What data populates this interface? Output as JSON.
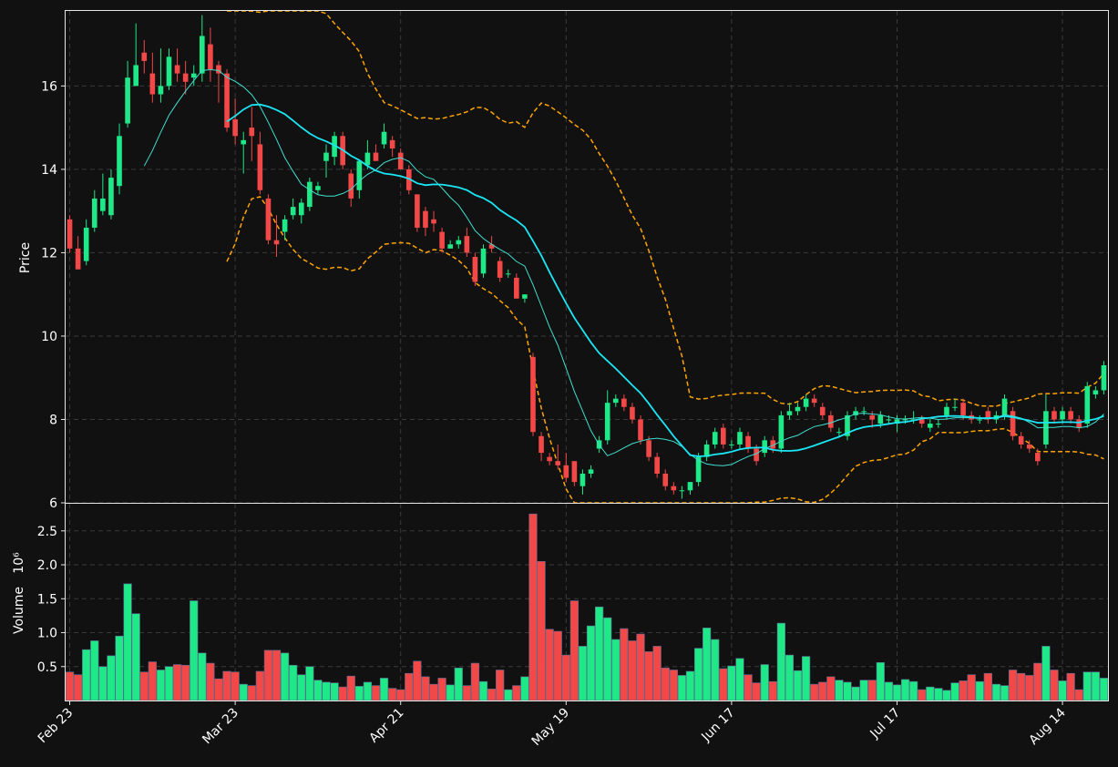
{
  "chart_data": {
    "type": "candlestick",
    "x_tick_labels": [
      "Feb 23",
      "Mar 23",
      "Apr 21",
      "May 19",
      "Jun 17",
      "Jul 17",
      "Aug 14"
    ],
    "x_tick_index": [
      0,
      20,
      40,
      60,
      80,
      100,
      120
    ],
    "price_panel": {
      "ylabel": "Price",
      "ylim": [
        6.0,
        17.8
      ],
      "yticks": [
        6,
        8,
        10,
        12,
        14,
        16
      ],
      "grid": true
    },
    "volume_panel": {
      "ylabel": "Volume",
      "yscale_label": "10⁶",
      "ylim": [
        0,
        2.9
      ],
      "yticks": [
        0.5,
        1.0,
        1.5,
        2.0,
        2.5
      ],
      "yticklabels": [
        "0.5",
        "1.0",
        "1.5",
        "2.0",
        "2.5"
      ],
      "grid": true
    },
    "colors": {
      "up": "#1ee887",
      "down": "#f24848",
      "ma_short": "#40e0d0",
      "ma_long": "#1ae6f5",
      "bands": "#ffa500",
      "background": "#111111"
    },
    "candles": [
      [
        12.8,
        12.9,
        12.0,
        12.1
      ],
      [
        12.1,
        12.4,
        11.6,
        11.6
      ],
      [
        11.8,
        12.8,
        11.7,
        12.6
      ],
      [
        12.6,
        13.5,
        12.5,
        13.3
      ],
      [
        13.0,
        13.9,
        12.9,
        13.3
      ],
      [
        12.9,
        14.0,
        12.8,
        13.8
      ],
      [
        13.6,
        15.1,
        13.4,
        14.8
      ],
      [
        15.1,
        16.6,
        15.0,
        16.2
      ],
      [
        16.0,
        17.5,
        16.0,
        16.5
      ],
      [
        16.8,
        17.1,
        16.3,
        16.6
      ],
      [
        16.3,
        16.8,
        15.6,
        15.8
      ],
      [
        15.8,
        16.9,
        15.6,
        16.0
      ],
      [
        16.0,
        16.9,
        15.9,
        16.7
      ],
      [
        16.5,
        16.9,
        16.1,
        16.3
      ],
      [
        16.3,
        16.6,
        15.8,
        16.1
      ],
      [
        16.2,
        16.5,
        16.0,
        16.3
      ],
      [
        16.3,
        17.7,
        16.1,
        17.2
      ],
      [
        17.0,
        17.4,
        16.1,
        16.4
      ],
      [
        16.5,
        16.6,
        15.6,
        16.3
      ],
      [
        16.3,
        16.4,
        14.9,
        15.0
      ],
      [
        15.2,
        15.7,
        14.6,
        14.8
      ],
      [
        14.6,
        14.9,
        13.9,
        14.7
      ],
      [
        15.0,
        15.5,
        14.2,
        14.8
      ],
      [
        14.6,
        14.9,
        13.4,
        13.5
      ],
      [
        13.3,
        13.4,
        12.2,
        12.3
      ],
      [
        12.3,
        12.9,
        11.9,
        12.2
      ],
      [
        12.5,
        12.9,
        12.3,
        12.8
      ],
      [
        12.9,
        13.3,
        12.8,
        13.1
      ],
      [
        12.9,
        13.3,
        12.7,
        13.2
      ],
      [
        13.1,
        13.8,
        13.0,
        13.7
      ],
      [
        13.5,
        13.7,
        13.4,
        13.6
      ],
      [
        14.2,
        14.6,
        13.8,
        14.4
      ],
      [
        14.3,
        14.9,
        14.1,
        14.8
      ],
      [
        14.8,
        14.9,
        14.0,
        14.1
      ],
      [
        13.9,
        14.0,
        13.1,
        13.3
      ],
      [
        13.5,
        14.2,
        13.3,
        14.2
      ],
      [
        14.1,
        14.7,
        14.0,
        14.4
      ],
      [
        14.4,
        14.6,
        14.2,
        14.2
      ],
      [
        14.6,
        15.1,
        14.5,
        14.9
      ],
      [
        14.7,
        14.8,
        14.3,
        14.5
      ],
      [
        14.4,
        14.5,
        14.0,
        14.0
      ],
      [
        14.0,
        14.1,
        13.4,
        13.5
      ],
      [
        13.4,
        13.4,
        12.5,
        12.6
      ],
      [
        13.0,
        13.1,
        12.4,
        12.6
      ],
      [
        12.8,
        13.0,
        12.5,
        12.7
      ],
      [
        12.5,
        12.6,
        12.0,
        12.1
      ],
      [
        12.1,
        12.3,
        12.1,
        12.2
      ],
      [
        12.2,
        12.4,
        12.1,
        12.3
      ],
      [
        12.4,
        12.6,
        11.9,
        12.0
      ],
      [
        11.9,
        12.0,
        11.2,
        11.3
      ],
      [
        11.5,
        12.2,
        11.4,
        12.1
      ],
      [
        12.2,
        12.4,
        12.0,
        12.1
      ],
      [
        11.8,
        11.9,
        11.3,
        11.4
      ],
      [
        11.5,
        11.6,
        11.4,
        11.5
      ],
      [
        11.4,
        11.5,
        10.9,
        10.9
      ],
      [
        10.9,
        11.0,
        10.8,
        11.0
      ],
      [
        9.5,
        9.6,
        7.6,
        7.7
      ],
      [
        7.6,
        7.7,
        7.0,
        7.2
      ],
      [
        7.1,
        7.2,
        6.9,
        7.0
      ],
      [
        7.0,
        7.4,
        6.8,
        6.9
      ],
      [
        6.9,
        7.2,
        6.5,
        6.6
      ],
      [
        7.0,
        7.0,
        6.4,
        6.5
      ],
      [
        6.4,
        6.8,
        6.2,
        6.7
      ],
      [
        6.7,
        6.9,
        6.6,
        6.8
      ],
      [
        7.3,
        7.6,
        7.2,
        7.5
      ],
      [
        7.5,
        8.7,
        7.4,
        8.4
      ],
      [
        8.4,
        8.6,
        8.3,
        8.5
      ],
      [
        8.5,
        8.6,
        8.2,
        8.3
      ],
      [
        8.3,
        8.4,
        7.9,
        8.0
      ],
      [
        8.0,
        8.1,
        7.4,
        7.5
      ],
      [
        7.5,
        7.6,
        7.0,
        7.1
      ],
      [
        7.1,
        7.2,
        6.6,
        6.7
      ],
      [
        6.7,
        6.8,
        6.3,
        6.4
      ],
      [
        6.4,
        6.5,
        6.2,
        6.3
      ],
      [
        6.3,
        6.4,
        6.1,
        6.3
      ],
      [
        6.3,
        6.5,
        6.2,
        6.5
      ],
      [
        6.5,
        7.2,
        6.4,
        7.1
      ],
      [
        7.1,
        7.5,
        7.0,
        7.4
      ],
      [
        7.4,
        7.8,
        7.3,
        7.7
      ],
      [
        7.8,
        7.9,
        7.3,
        7.4
      ],
      [
        7.4,
        7.5,
        7.3,
        7.4
      ],
      [
        7.4,
        7.8,
        7.3,
        7.7
      ],
      [
        7.6,
        7.7,
        7.2,
        7.3
      ],
      [
        7.3,
        7.4,
        6.9,
        7.0
      ],
      [
        7.2,
        7.6,
        7.1,
        7.5
      ],
      [
        7.5,
        7.6,
        7.2,
        7.3
      ],
      [
        7.3,
        8.2,
        7.2,
        8.1
      ],
      [
        8.1,
        8.4,
        8.0,
        8.2
      ],
      [
        8.2,
        8.4,
        8.1,
        8.3
      ],
      [
        8.3,
        8.6,
        8.2,
        8.5
      ],
      [
        8.5,
        8.6,
        8.3,
        8.4
      ],
      [
        8.3,
        8.4,
        8.0,
        8.1
      ],
      [
        8.1,
        8.2,
        7.7,
        7.8
      ],
      [
        7.7,
        7.8,
        7.6,
        7.7
      ],
      [
        7.6,
        8.2,
        7.5,
        8.1
      ],
      [
        8.1,
        8.3,
        8.0,
        8.2
      ],
      [
        8.2,
        8.3,
        8.1,
        8.2
      ],
      [
        8.1,
        8.2,
        7.8,
        8.0
      ],
      [
        7.9,
        8.2,
        7.8,
        8.1
      ],
      [
        8.0,
        8.1,
        7.9,
        8.0
      ],
      [
        7.9,
        8.1,
        7.7,
        8.0
      ],
      [
        8.0,
        8.1,
        7.9,
        8.0
      ],
      [
        8.0,
        8.2,
        7.9,
        8.0
      ],
      [
        8.0,
        8.1,
        7.8,
        7.9
      ],
      [
        7.8,
        8.0,
        7.7,
        7.9
      ],
      [
        7.9,
        8.0,
        7.8,
        7.9
      ],
      [
        8.1,
        8.4,
        8.0,
        8.3
      ],
      [
        8.3,
        8.5,
        8.2,
        8.3
      ],
      [
        8.4,
        8.5,
        8.0,
        8.1
      ],
      [
        8.1,
        8.2,
        7.9,
        8.0
      ],
      [
        8.0,
        8.1,
        7.9,
        8.0
      ],
      [
        8.2,
        8.3,
        7.9,
        8.0
      ],
      [
        8.0,
        8.2,
        7.9,
        8.1
      ],
      [
        8.1,
        8.6,
        8.0,
        8.5
      ],
      [
        8.2,
        8.3,
        7.5,
        7.6
      ],
      [
        7.6,
        7.7,
        7.3,
        7.4
      ],
      [
        7.4,
        7.5,
        7.2,
        7.3
      ],
      [
        7.2,
        7.3,
        6.9,
        7.0
      ],
      [
        7.4,
        8.6,
        7.3,
        8.2
      ],
      [
        8.2,
        8.3,
        7.9,
        8.0
      ],
      [
        8.0,
        8.3,
        7.9,
        8.2
      ],
      [
        8.2,
        8.3,
        7.9,
        8.0
      ],
      [
        8.0,
        8.1,
        7.7,
        7.8
      ],
      [
        7.9,
        8.9,
        7.8,
        8.8
      ],
      [
        8.6,
        8.8,
        8.5,
        8.7
      ],
      [
        8.7,
        9.4,
        8.6,
        9.3
      ]
    ],
    "volume": [
      0.42,
      0.38,
      0.75,
      0.88,
      0.5,
      0.66,
      0.95,
      1.72,
      1.28,
      0.42,
      0.57,
      0.45,
      0.5,
      0.53,
      0.52,
      1.47,
      0.7,
      0.55,
      0.32,
      0.43,
      0.42,
      0.24,
      0.22,
      0.43,
      0.74,
      0.74,
      0.7,
      0.52,
      0.38,
      0.5,
      0.3,
      0.27,
      0.26,
      0.2,
      0.36,
      0.21,
      0.27,
      0.22,
      0.33,
      0.18,
      0.16,
      0.4,
      0.58,
      0.35,
      0.24,
      0.33,
      0.23,
      0.48,
      0.22,
      0.55,
      0.28,
      0.17,
      0.45,
      0.16,
      0.22,
      0.35,
      2.75,
      2.05,
      1.05,
      1.02,
      0.67,
      1.47,
      0.8,
      1.1,
      1.38,
      1.22,
      0.9,
      1.06,
      0.88,
      0.98,
      0.72,
      0.8,
      0.48,
      0.45,
      0.37,
      0.43,
      0.77,
      1.07,
      0.9,
      0.47,
      0.51,
      0.62,
      0.38,
      0.26,
      0.53,
      0.28,
      1.14,
      0.67,
      0.44,
      0.65,
      0.24,
      0.27,
      0.35,
      0.3,
      0.27,
      0.2,
      0.3,
      0.3,
      0.56,
      0.27,
      0.23,
      0.31,
      0.28,
      0.16,
      0.2,
      0.18,
      0.15,
      0.26,
      0.29,
      0.38,
      0.28,
      0.4,
      0.24,
      0.22,
      0.45,
      0.4,
      0.37,
      0.55,
      0.8,
      0.45,
      0.29,
      0.4,
      0.16,
      0.42,
      0.42,
      0.33
    ]
  }
}
